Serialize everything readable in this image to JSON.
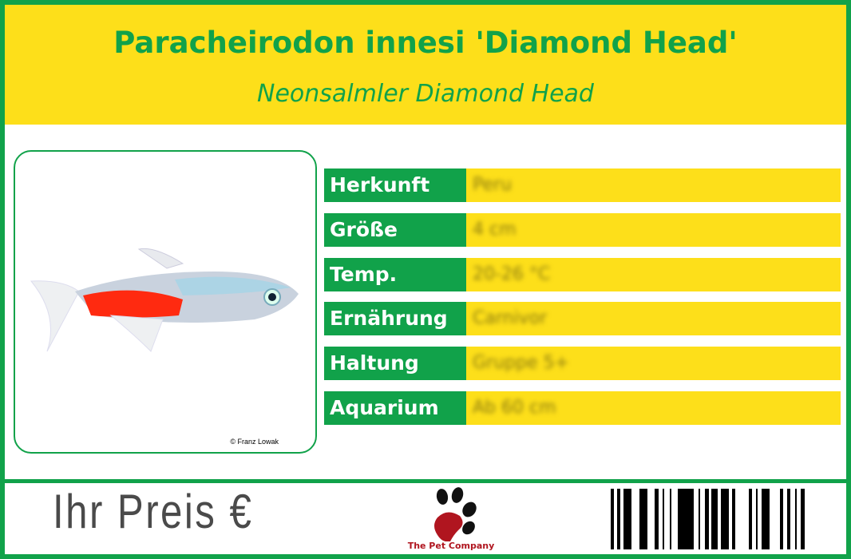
{
  "header": {
    "title": "Paracheirodon innesi 'Diamond Head'",
    "subtitle": "Neonsalmler Diamond Head"
  },
  "photo": {
    "credit": "© Franz Lowak"
  },
  "rows": [
    {
      "label": "Herkunft",
      "value": "Peru"
    },
    {
      "label": "Größe",
      "value": "4 cm"
    },
    {
      "label": "Temp.",
      "value": "20-26 °C"
    },
    {
      "label": "Ernährung",
      "value": "Carnivor"
    },
    {
      "label": "Haltung",
      "value": "Gruppe 5+"
    },
    {
      "label": "Aquarium",
      "value": "Ab 60 cm"
    }
  ],
  "footer": {
    "price_label": "Ihr Preis €",
    "logo_text": "The Pet Company"
  },
  "colors": {
    "green": "#11a24a",
    "yellow": "#fddf1a",
    "logo_red": "#b0151f"
  }
}
